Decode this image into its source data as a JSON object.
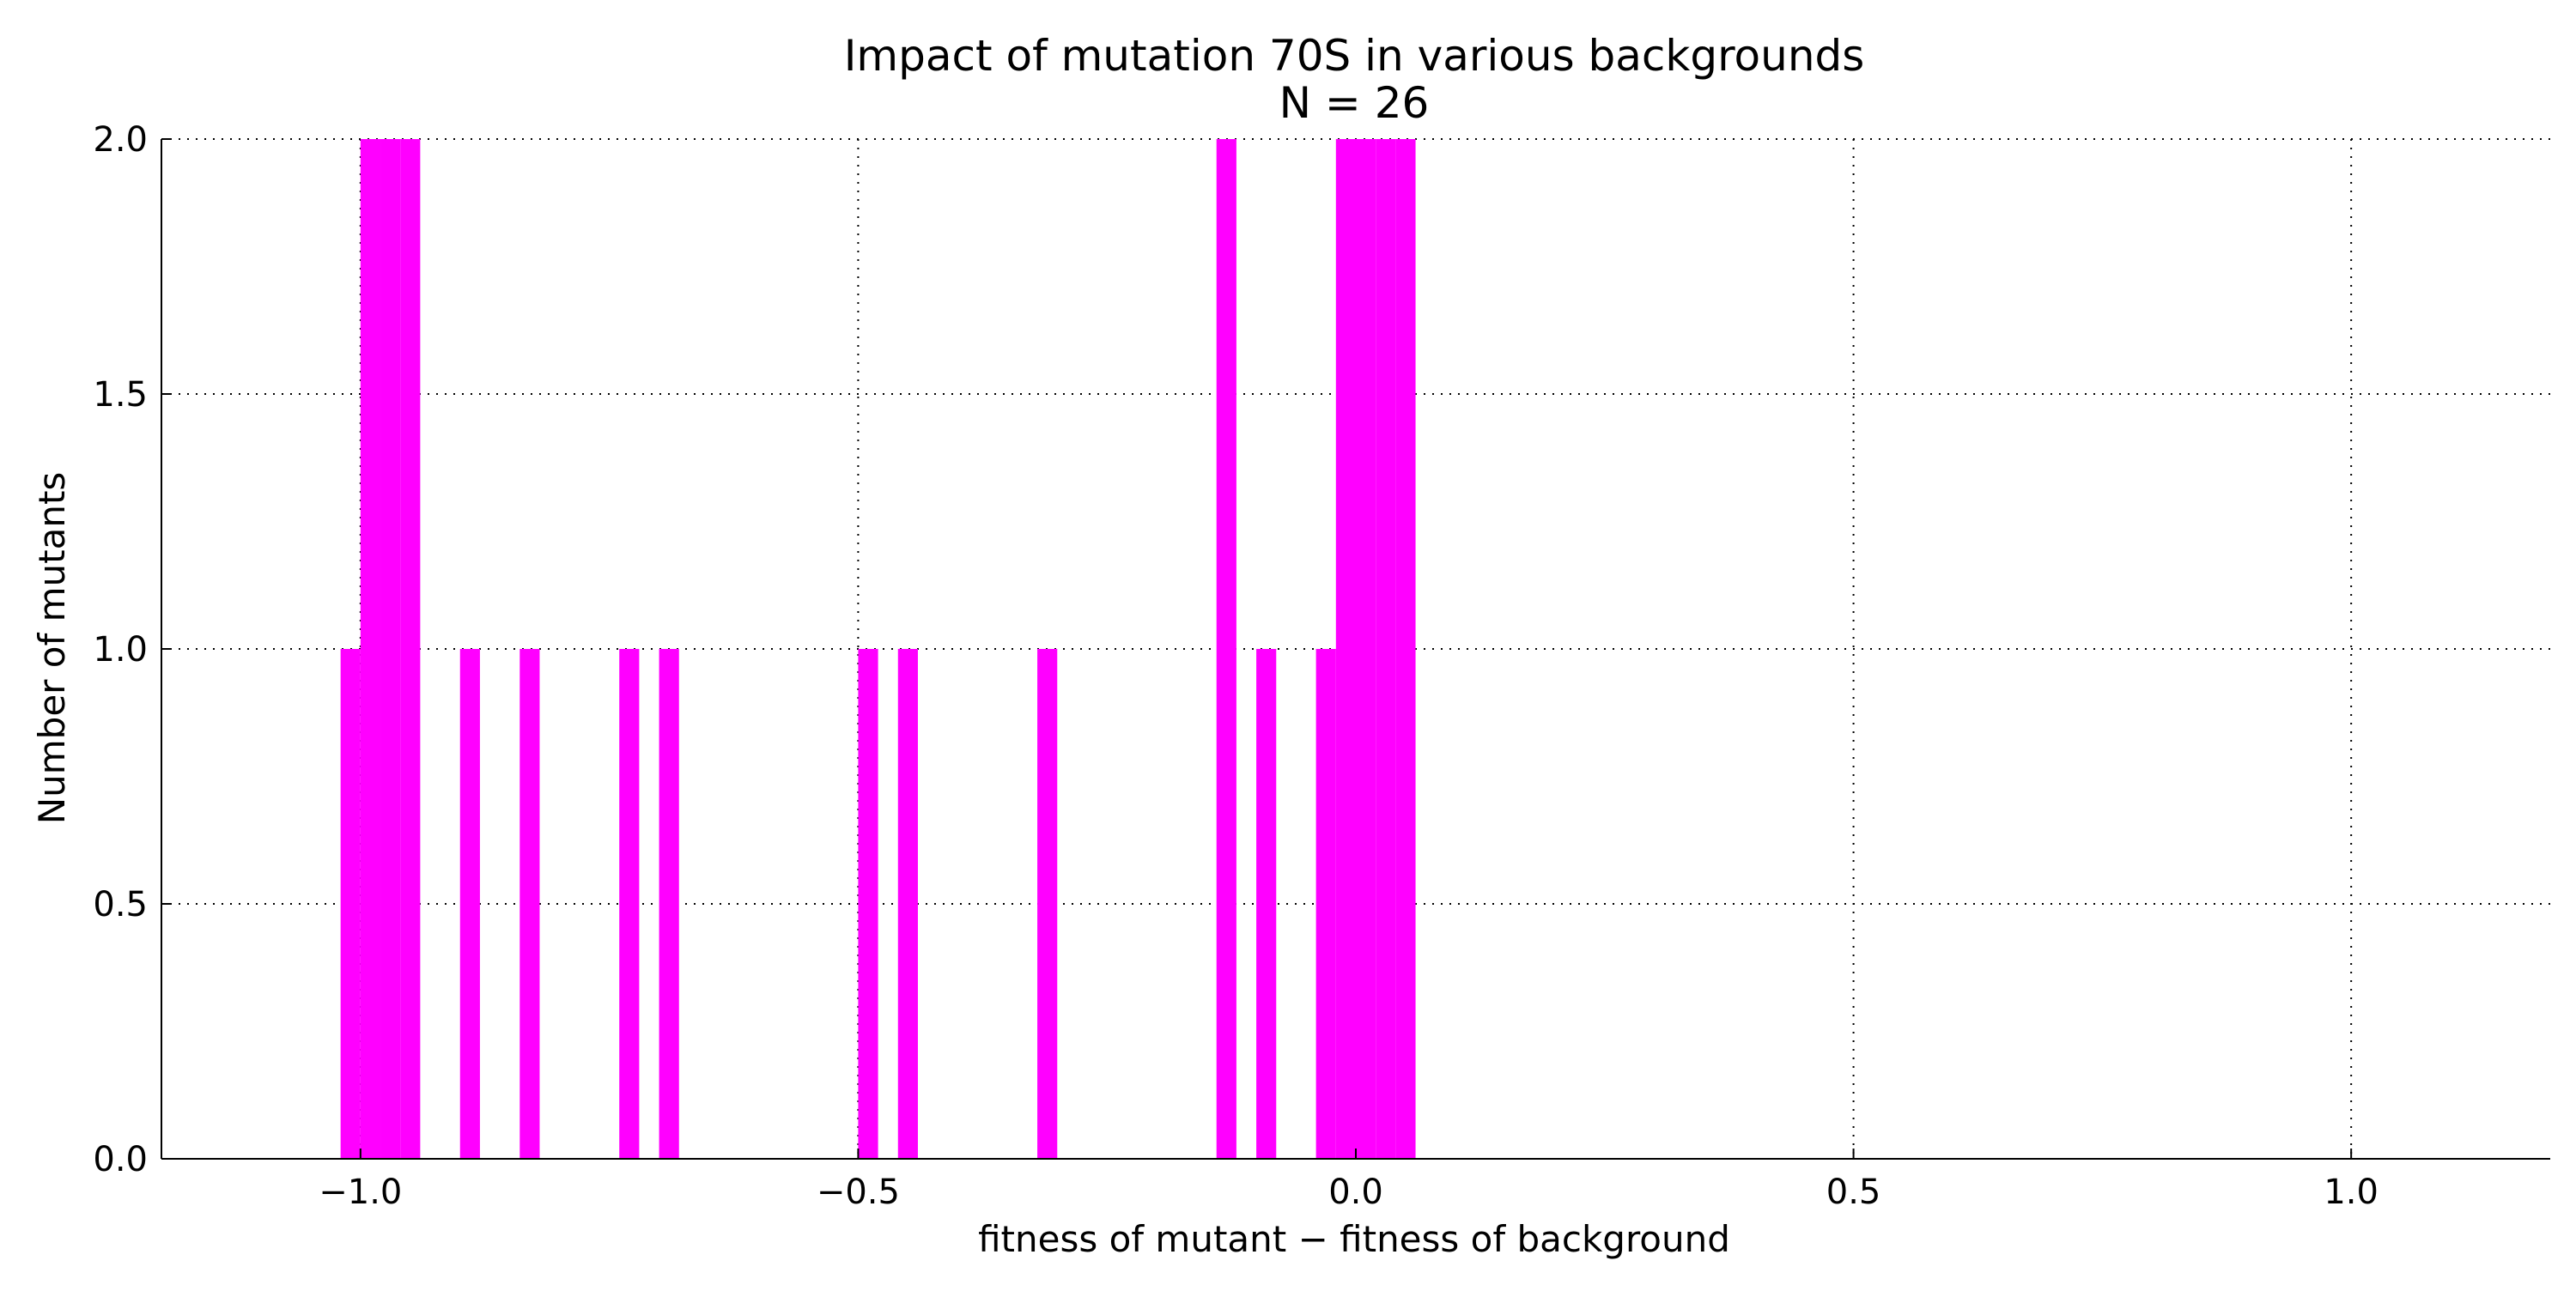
{
  "chart_data": {
    "type": "bar",
    "title": "Impact of mutation 70S in various backgrounds",
    "subtitle": "N = 26",
    "xlabel": "fitness of mutant  −  fitness of background",
    "ylabel": "Number of mutants",
    "xlim": [
      -1.2,
      1.2
    ],
    "ylim": [
      0.0,
      2.0
    ],
    "x_ticks": [
      -1.0,
      -0.5,
      0.0,
      0.5,
      1.0
    ],
    "x_tick_labels": [
      "−1.0",
      "−0.5",
      "0.0",
      "0.5",
      "1.0"
    ],
    "y_ticks": [
      0.0,
      0.5,
      1.0,
      1.5,
      2.0
    ],
    "y_tick_labels": [
      "0.0",
      "0.5",
      "1.0",
      "1.5",
      "2.0"
    ],
    "grid": true,
    "bar_color": "#ff00ff",
    "bin_width": 0.02,
    "bins": [
      {
        "x0": -1.02,
        "count": 1
      },
      {
        "x0": -1.0,
        "count": 2
      },
      {
        "x0": -0.98,
        "count": 2
      },
      {
        "x0": -0.96,
        "count": 2
      },
      {
        "x0": -0.9,
        "count": 1
      },
      {
        "x0": -0.84,
        "count": 1
      },
      {
        "x0": -0.74,
        "count": 1
      },
      {
        "x0": -0.7,
        "count": 1
      },
      {
        "x0": -0.5,
        "count": 1
      },
      {
        "x0": -0.46,
        "count": 1
      },
      {
        "x0": -0.32,
        "count": 1
      },
      {
        "x0": -0.14,
        "count": 2
      },
      {
        "x0": -0.1,
        "count": 1
      },
      {
        "x0": -0.04,
        "count": 1
      },
      {
        "x0": -0.02,
        "count": 2
      },
      {
        "x0": 0.0,
        "count": 2
      },
      {
        "x0": 0.02,
        "count": 2
      },
      {
        "x0": 0.04,
        "count": 2
      }
    ]
  }
}
